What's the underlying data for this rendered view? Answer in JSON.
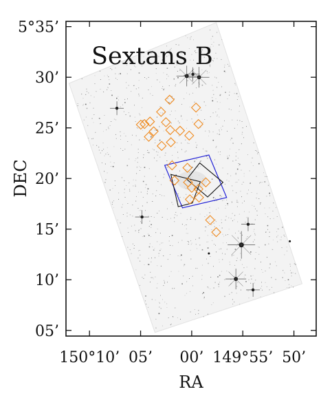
{
  "chart_data": {
    "type": "scatter",
    "title": "Sextans B",
    "xlabel": "RA",
    "ylabel": "DEC",
    "x_ticks": [
      {
        "value": 150.16667,
        "label": "150°10’"
      },
      {
        "value": 150.08333,
        "label": "05’"
      },
      {
        "value": 150.0,
        "label": "00’"
      },
      {
        "value": 149.91667,
        "label": "149°55’"
      },
      {
        "value": 149.83333,
        "label": "50’"
      }
    ],
    "y_ticks": [
      {
        "value": 5.08333,
        "label": "05’"
      },
      {
        "value": 5.16667,
        "label": "10’"
      },
      {
        "value": 5.25,
        "label": "15’"
      },
      {
        "value": 5.33333,
        "label": "20’"
      },
      {
        "value": 5.41667,
        "label": "25’"
      },
      {
        "value": 5.5,
        "label": "30’"
      },
      {
        "value": 5.58333,
        "label": "5°35’"
      }
    ],
    "xlim": [
      150.205,
      149.797
    ],
    "ylim": [
      5.074,
      5.592
    ],
    "grid": false,
    "colors": {
      "markers": "#ef8a1f",
      "blue_field": "#1f1fd6",
      "black_fields": "#111111",
      "image": "#cfcfcf"
    },
    "image_footprint": [
      [
        150.2,
        5.49
      ],
      [
        149.96,
        5.59
      ],
      [
        149.82,
        5.16
      ],
      [
        150.06,
        5.08
      ]
    ],
    "blue_field": [
      [
        150.044,
        5.355
      ],
      [
        149.972,
        5.372
      ],
      [
        149.943,
        5.302
      ],
      [
        150.015,
        5.285
      ]
    ],
    "black_fields": [
      [
        [
          150.034,
          5.34
        ],
        [
          149.986,
          5.328
        ],
        [
          149.999,
          5.293
        ],
        [
          150.022,
          5.287
        ]
      ],
      [
        [
          149.987,
          5.359
        ],
        [
          149.949,
          5.327
        ],
        [
          149.974,
          5.303
        ],
        [
          150.008,
          5.332
        ]
      ]
    ],
    "markers": [
      {
        "x": 150.036,
        "y": 5.463
      },
      {
        "x": 149.993,
        "y": 5.45
      },
      {
        "x": 150.05,
        "y": 5.443
      },
      {
        "x": 150.042,
        "y": 5.426
      },
      {
        "x": 150.077,
        "y": 5.423
      },
      {
        "x": 150.083,
        "y": 5.422
      },
      {
        "x": 150.068,
        "y": 5.427
      },
      {
        "x": 150.035,
        "y": 5.413
      },
      {
        "x": 150.019,
        "y": 5.412
      },
      {
        "x": 149.989,
        "y": 5.423
      },
      {
        "x": 150.062,
        "y": 5.411
      },
      {
        "x": 150.07,
        "y": 5.402
      },
      {
        "x": 150.004,
        "y": 5.404
      },
      {
        "x": 150.034,
        "y": 5.393
      },
      {
        "x": 150.049,
        "y": 5.387
      },
      {
        "x": 150.032,
        "y": 5.355
      },
      {
        "x": 150.007,
        "y": 5.351
      },
      {
        "x": 150.028,
        "y": 5.33
      },
      {
        "x": 150.006,
        "y": 5.327
      },
      {
        "x": 149.977,
        "y": 5.327
      },
      {
        "x": 150.0,
        "y": 5.318
      },
      {
        "x": 149.989,
        "y": 5.316
      },
      {
        "x": 150.003,
        "y": 5.299
      },
      {
        "x": 149.988,
        "y": 5.302
      },
      {
        "x": 149.97,
        "y": 5.265
      },
      {
        "x": 149.96,
        "y": 5.245
      }
    ],
    "stars": [
      {
        "x": 149.988,
        "y": 5.5,
        "m": 3
      },
      {
        "x": 150.008,
        "y": 5.502,
        "m": 3
      },
      {
        "x": 149.998,
        "y": 5.505,
        "m": 2
      },
      {
        "x": 150.122,
        "y": 5.449,
        "m": 2
      },
      {
        "x": 149.919,
        "y": 5.224,
        "m": 4
      },
      {
        "x": 149.928,
        "y": 5.168,
        "m": 3
      },
      {
        "x": 149.9,
        "y": 5.15,
        "m": 2
      },
      {
        "x": 149.908,
        "y": 5.258,
        "m": 2
      },
      {
        "x": 150.081,
        "y": 5.27,
        "m": 2
      },
      {
        "x": 149.972,
        "y": 5.21,
        "m": 1
      },
      {
        "x": 149.84,
        "y": 5.23,
        "m": 1
      }
    ]
  }
}
